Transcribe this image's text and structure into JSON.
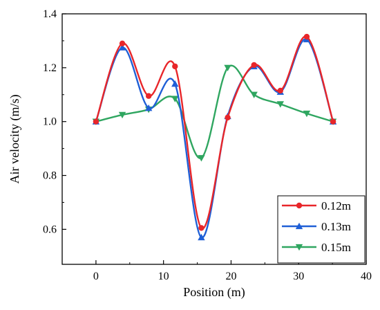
{
  "chart_data": {
    "type": "line",
    "title": "",
    "xlabel": "Position (m)",
    "ylabel": "Air velocity (m/s)",
    "xlim": [
      -5,
      40
    ],
    "ylim": [
      0.47,
      1.4
    ],
    "xticks": [
      0,
      10,
      20,
      30,
      40
    ],
    "yticks": [
      0.6,
      0.8,
      1.0,
      1.2,
      1.4
    ],
    "xtick_labels": [
      "0",
      "10",
      "20",
      "30",
      "40"
    ],
    "ytick_labels": [
      "0.6",
      "0.8",
      "1.0",
      "1.2",
      "1.4"
    ],
    "grid": false,
    "legend_position": "bottom-right",
    "series": [
      {
        "name": "0.12m",
        "color": "#e8262a",
        "marker": "circle",
        "x": [
          0,
          3.9,
          7.8,
          11.7,
          15.6,
          19.5,
          23.4,
          27.3,
          31.2,
          35.1
        ],
        "y": [
          1.0,
          1.29,
          1.095,
          1.205,
          0.605,
          1.015,
          1.21,
          1.115,
          1.315,
          1.0
        ]
      },
      {
        "name": "0.13m",
        "color": "#1f5fd6",
        "marker": "triangle-up",
        "x": [
          0,
          3.9,
          7.8,
          11.7,
          15.6,
          19.5,
          23.4,
          27.3,
          31.2,
          35.1
        ],
        "y": [
          1.0,
          1.275,
          1.05,
          1.14,
          0.57,
          1.02,
          1.205,
          1.11,
          1.305,
          1.0
        ]
      },
      {
        "name": "0.15m",
        "color": "#2fa660",
        "marker": "triangle-down",
        "x": [
          0,
          3.9,
          7.8,
          11.7,
          15.6,
          19.5,
          23.4,
          27.3,
          31.2,
          35.1
        ],
        "y": [
          1.0,
          1.025,
          1.045,
          1.085,
          0.865,
          1.2,
          1.1,
          1.065,
          1.03,
          1.0
        ]
      }
    ]
  }
}
